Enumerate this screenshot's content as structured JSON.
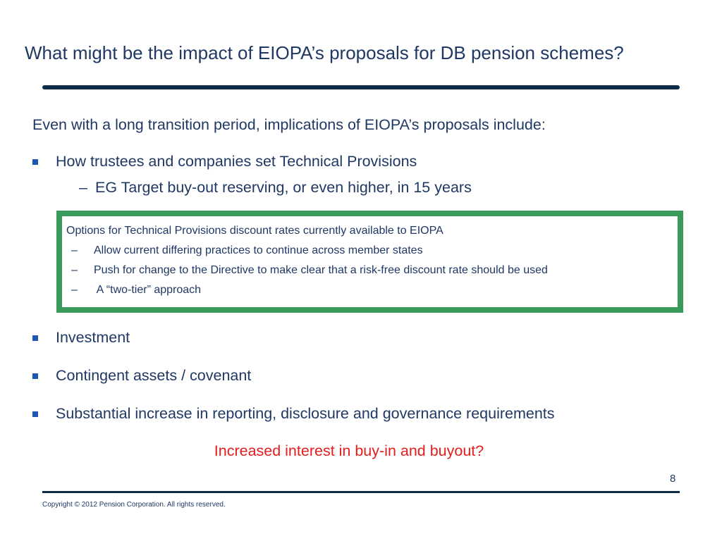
{
  "slide": {
    "title": "What might be the impact of EIOPA’s proposals for DB pension schemes?",
    "intro": "Even with a long transition period, implications of EIOPA’s proposals include:",
    "bullets": [
      {
        "text": "How trustees and companies set Technical Provisions",
        "sub": [
          "EG Target buy-out reserving, or even higher, in 15 years"
        ]
      },
      {
        "text": "Investment"
      },
      {
        "text": "Contingent assets / covenant"
      },
      {
        "text": "Substantial increase in reporting, disclosure and governance requirements"
      }
    ],
    "callout": {
      "heading": "Options for Technical Provisions discount rates currently available to EIOPA",
      "items": [
        "Allow current differing practices to continue across member states",
        "Push for change to the Directive to make clear that a risk-free discount rate should be used",
        " A “two-tier” approach"
      ],
      "border_color": "#3a9a5b"
    },
    "conclusion": "Increased interest in buy-in and buyout?",
    "page_number": "8",
    "copyright": "Copyright © 2012 Pension Corporation. All rights reserved."
  },
  "colors": {
    "text": "#1f3864",
    "accent_red": "#e41d1d",
    "bullet_marker": "#1f56b3",
    "rule": "#0d2a47"
  },
  "glyphs": {
    "dash": "–"
  }
}
